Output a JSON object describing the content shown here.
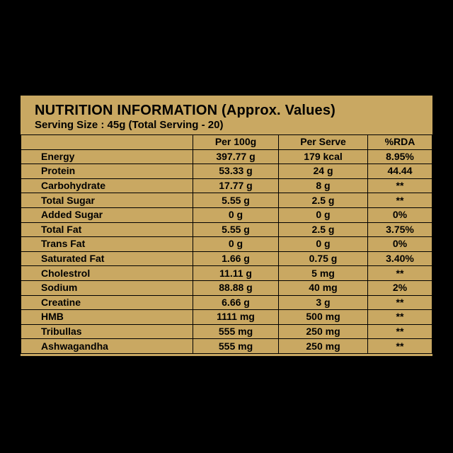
{
  "header": {
    "title": "NUTRITION INFORMATION (Approx. Values)",
    "subtitle": "Serving Size : 45g (Total Serving - 20)"
  },
  "table": {
    "columns": [
      "Per 100g",
      "Per Serve",
      "%RDA"
    ],
    "rows": [
      [
        "Energy",
        "397.77 g",
        "179 kcal",
        "8.95%"
      ],
      [
        "Protein",
        "53.33 g",
        "24 g",
        "44.44"
      ],
      [
        "Carbohydrate",
        "17.77 g",
        "8 g",
        "**"
      ],
      [
        "Total Sugar",
        "5.55 g",
        "2.5 g",
        "**"
      ],
      [
        "Added Sugar",
        "0 g",
        "0 g",
        "0%"
      ],
      [
        "Total Fat",
        "5.55 g",
        "2.5 g",
        "3.75%"
      ],
      [
        "Trans Fat",
        "0 g",
        "0 g",
        "0%"
      ],
      [
        "Saturated Fat",
        "1.66 g",
        "0.75 g",
        "3.40%"
      ],
      [
        "Cholestrol",
        "11.11 g",
        "5 mg",
        "**"
      ],
      [
        "Sodium",
        "88.88 g",
        "40 mg",
        "2%"
      ],
      [
        "Creatine",
        "6.66 g",
        "3 g",
        "**"
      ],
      [
        "HMB",
        "1111 mg",
        "500 mg",
        "**"
      ],
      [
        "Tribullas",
        "555 mg",
        "250 mg",
        "**"
      ],
      [
        "Ashwagandha",
        "555 mg",
        "250 mg",
        "**"
      ]
    ]
  }
}
